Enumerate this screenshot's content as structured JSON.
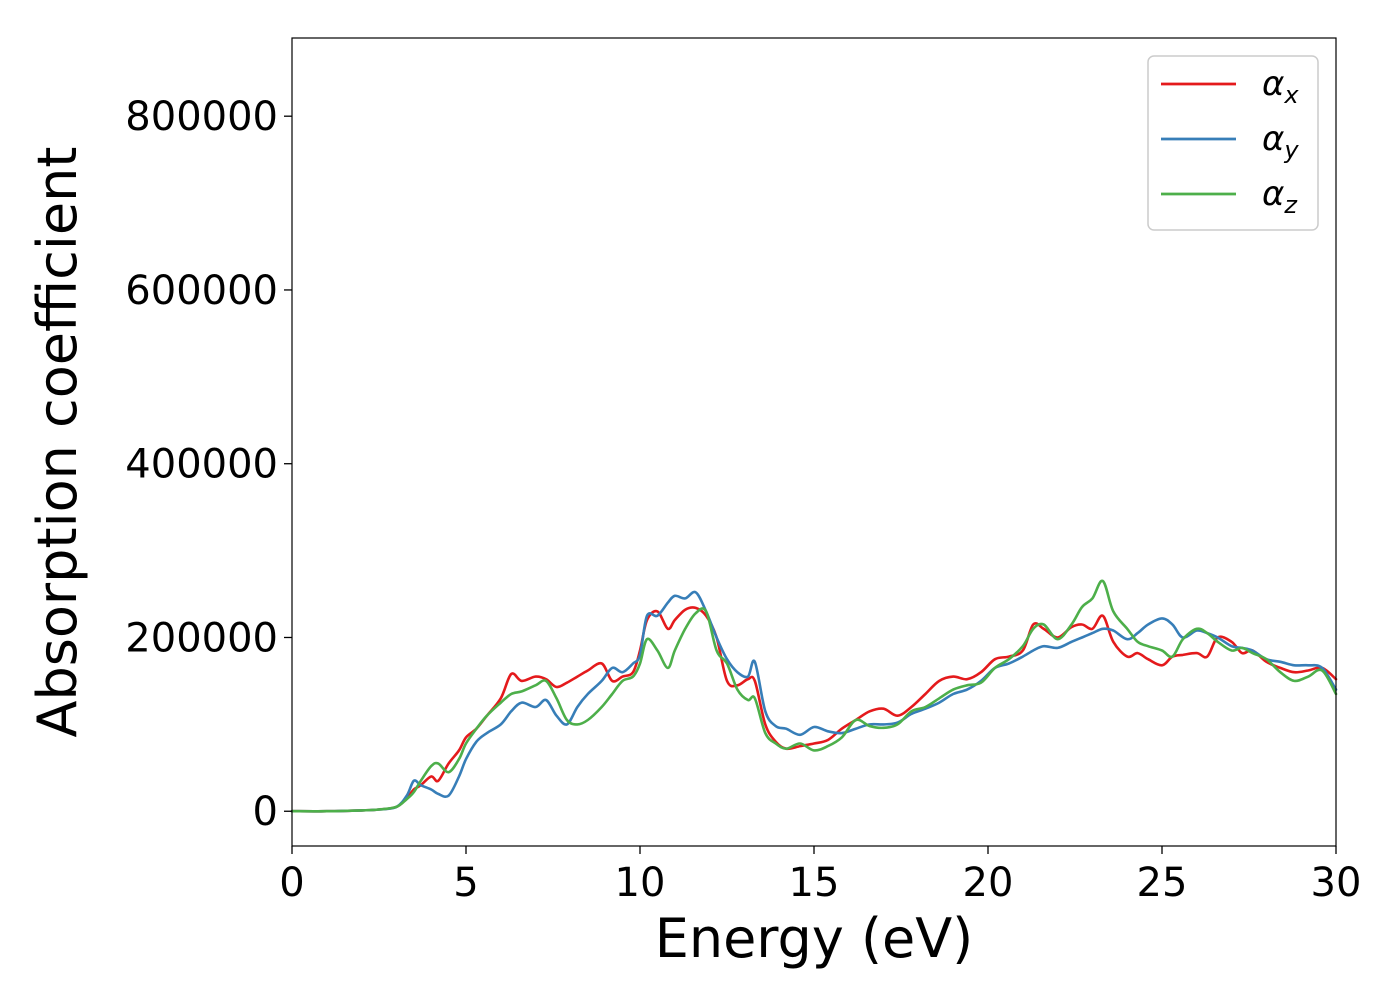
{
  "chart_data": {
    "type": "line",
    "xlabel": "Energy (eV)",
    "ylabel": "Absorption coefficient",
    "xlim": [
      0,
      30
    ],
    "ylim": [
      -40000,
      890000
    ],
    "x_ticks": [
      0,
      5,
      10,
      15,
      20,
      25,
      30
    ],
    "x_tick_labels": [
      "0",
      "5",
      "10",
      "15",
      "20",
      "25",
      "30"
    ],
    "y_ticks": [
      0,
      200000,
      400000,
      600000,
      800000
    ],
    "y_tick_labels": [
      "0",
      "200000",
      "400000",
      "600000",
      "800000"
    ],
    "grid": false,
    "legend_position": "top-right",
    "x": [
      0,
      1,
      2,
      2.5,
      3,
      3.3,
      3.5,
      3.7,
      4,
      4.2,
      4.5,
      4.8,
      5,
      5.3,
      5.6,
      6,
      6.3,
      6.6,
      7,
      7.3,
      7.6,
      7.9,
      8.2,
      8.5,
      8.9,
      9.2,
      9.5,
      9.8,
      10,
      10.2,
      10.5,
      10.8,
      11,
      11.3,
      11.6,
      11.9,
      12.2,
      12.5,
      12.8,
      13.1,
      13.3,
      13.6,
      13.9,
      14.2,
      14.6,
      15,
      15.4,
      15.8,
      16.2,
      16.6,
      17,
      17.4,
      17.8,
      18.2,
      18.6,
      19,
      19.4,
      19.8,
      20.2,
      20.6,
      21,
      21.3,
      21.6,
      22,
      22.4,
      22.7,
      23,
      23.3,
      23.6,
      24,
      24.3,
      24.6,
      25,
      25.3,
      25.6,
      26,
      26.3,
      26.6,
      27,
      27.3,
      27.6,
      28,
      28.4,
      28.8,
      29.2,
      29.6,
      30
    ],
    "series": [
      {
        "name": "α",
        "sub": "x",
        "color": "#e41a1c",
        "values": [
          0,
          0,
          1000,
          2000,
          5000,
          15000,
          25000,
          30000,
          40000,
          35000,
          55000,
          70000,
          85000,
          95000,
          110000,
          130000,
          158000,
          150000,
          155000,
          152000,
          143000,
          148000,
          155000,
          162000,
          170000,
          150000,
          155000,
          160000,
          185000,
          220000,
          230000,
          210000,
          220000,
          232000,
          234000,
          225000,
          200000,
          150000,
          145000,
          152000,
          150000,
          100000,
          80000,
          72000,
          75000,
          78000,
          82000,
          95000,
          105000,
          115000,
          118000,
          110000,
          120000,
          135000,
          150000,
          155000,
          152000,
          160000,
          175000,
          178000,
          185000,
          215000,
          210000,
          200000,
          212000,
          215000,
          210000,
          225000,
          195000,
          178000,
          182000,
          175000,
          168000,
          178000,
          180000,
          182000,
          178000,
          200000,
          195000,
          182000,
          185000,
          172000,
          165000,
          160000,
          162000,
          165000,
          152000
        ]
      },
      {
        "name": "α",
        "sub": "y",
        "color": "#377eb8",
        "values": [
          0,
          0,
          1000,
          2000,
          5000,
          18000,
          35000,
          30000,
          25000,
          20000,
          18000,
          40000,
          60000,
          80000,
          90000,
          100000,
          115000,
          125000,
          120000,
          128000,
          110000,
          100000,
          120000,
          135000,
          150000,
          165000,
          160000,
          170000,
          180000,
          225000,
          225000,
          240000,
          248000,
          245000,
          252000,
          230000,
          200000,
          175000,
          160000,
          155000,
          172000,
          115000,
          98000,
          95000,
          88000,
          97000,
          92000,
          90000,
          95000,
          100000,
          100000,
          102000,
          112000,
          118000,
          125000,
          135000,
          140000,
          150000,
          165000,
          170000,
          178000,
          185000,
          190000,
          188000,
          195000,
          200000,
          205000,
          210000,
          208000,
          198000,
          205000,
          215000,
          222000,
          215000,
          200000,
          208000,
          205000,
          200000,
          190000,
          188000,
          185000,
          175000,
          172000,
          168000,
          168000,
          165000,
          140000
        ]
      },
      {
        "name": "α",
        "sub": "z",
        "color": "#4daf4a",
        "values": [
          0,
          0,
          1000,
          2000,
          5000,
          14000,
          22000,
          35000,
          52000,
          55000,
          45000,
          60000,
          78000,
          95000,
          110000,
          125000,
          135000,
          138000,
          145000,
          150000,
          130000,
          105000,
          100000,
          105000,
          120000,
          135000,
          150000,
          155000,
          170000,
          198000,
          185000,
          165000,
          185000,
          210000,
          228000,
          230000,
          185000,
          170000,
          140000,
          128000,
          130000,
          90000,
          78000,
          72000,
          78000,
          70000,
          75000,
          85000,
          105000,
          98000,
          96000,
          100000,
          115000,
          120000,
          130000,
          140000,
          145000,
          148000,
          165000,
          175000,
          190000,
          210000,
          215000,
          198000,
          215000,
          235000,
          245000,
          265000,
          230000,
          210000,
          195000,
          190000,
          185000,
          178000,
          198000,
          210000,
          205000,
          195000,
          185000,
          188000,
          182000,
          175000,
          160000,
          150000,
          155000,
          162000,
          135000
        ]
      }
    ]
  }
}
